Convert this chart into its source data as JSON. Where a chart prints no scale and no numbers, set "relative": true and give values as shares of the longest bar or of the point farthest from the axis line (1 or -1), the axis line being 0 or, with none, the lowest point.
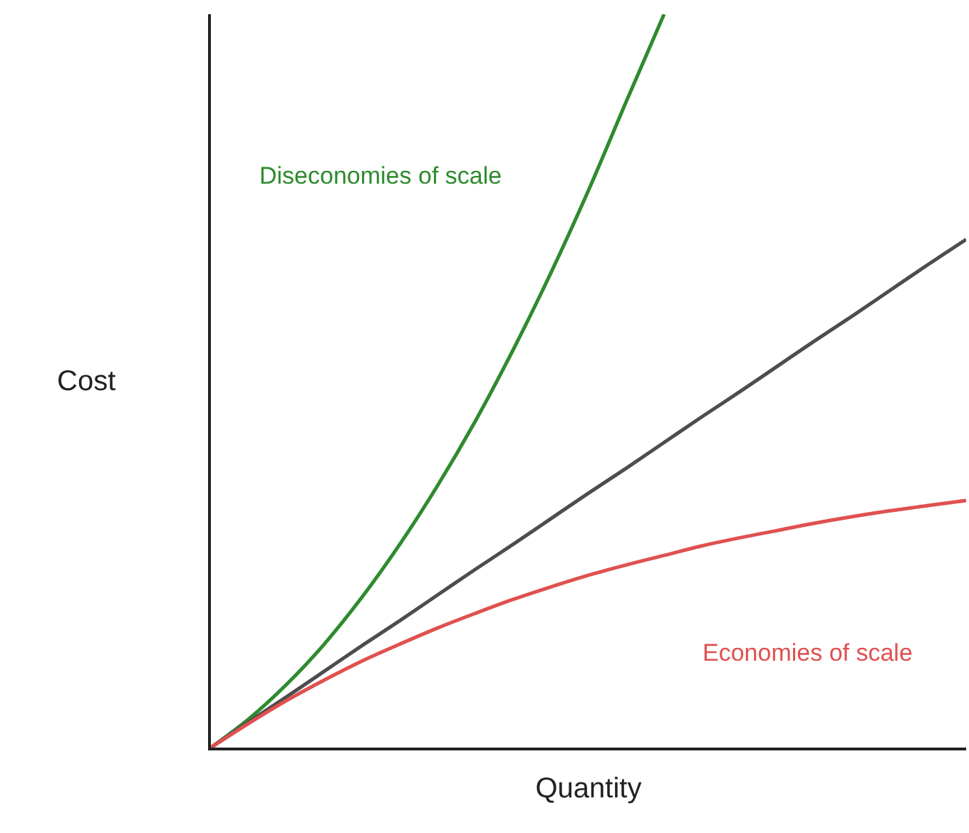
{
  "chart_data": {
    "type": "line",
    "relative": true,
    "xlabel": "Quantity",
    "ylabel": "Cost",
    "legend": false,
    "marker": "none",
    "categories": [
      null,
      null,
      null,
      null,
      null,
      null,
      null,
      null,
      null,
      null,
      null,
      null,
      null,
      null,
      null,
      null,
      null,
      null,
      null,
      null,
      null
    ],
    "series": [
      {
        "name": "Diseconomies of scale",
        "color": "#2e8b2e",
        "values": [
          0,
          0.039,
          0.086,
          0.141,
          0.205,
          0.277,
          0.357,
          0.445,
          0.542,
          0.647,
          0.76,
          0.881,
          1.0,
          null,
          null,
          null,
          null,
          null,
          null,
          null,
          null
        ]
      },
      {
        "color": "#4d4d4d",
        "values": [
          0,
          0.035,
          0.069,
          0.104,
          0.139,
          0.173,
          0.208,
          0.243,
          0.277,
          0.312,
          0.347,
          0.381,
          0.416,
          0.451,
          0.485,
          0.52,
          0.555,
          0.589,
          0.624,
          0.659,
          0.693
        ]
      },
      {
        "name": "Economies of scale",
        "color": "#e05050",
        "values": [
          0,
          0.033,
          0.064,
          0.092,
          0.118,
          0.141,
          0.163,
          0.183,
          0.202,
          0.219,
          0.235,
          0.249,
          0.262,
          0.275,
          0.286,
          0.296,
          0.306,
          0.315,
          0.323,
          0.33,
          0.337
        ]
      }
    ]
  }
}
